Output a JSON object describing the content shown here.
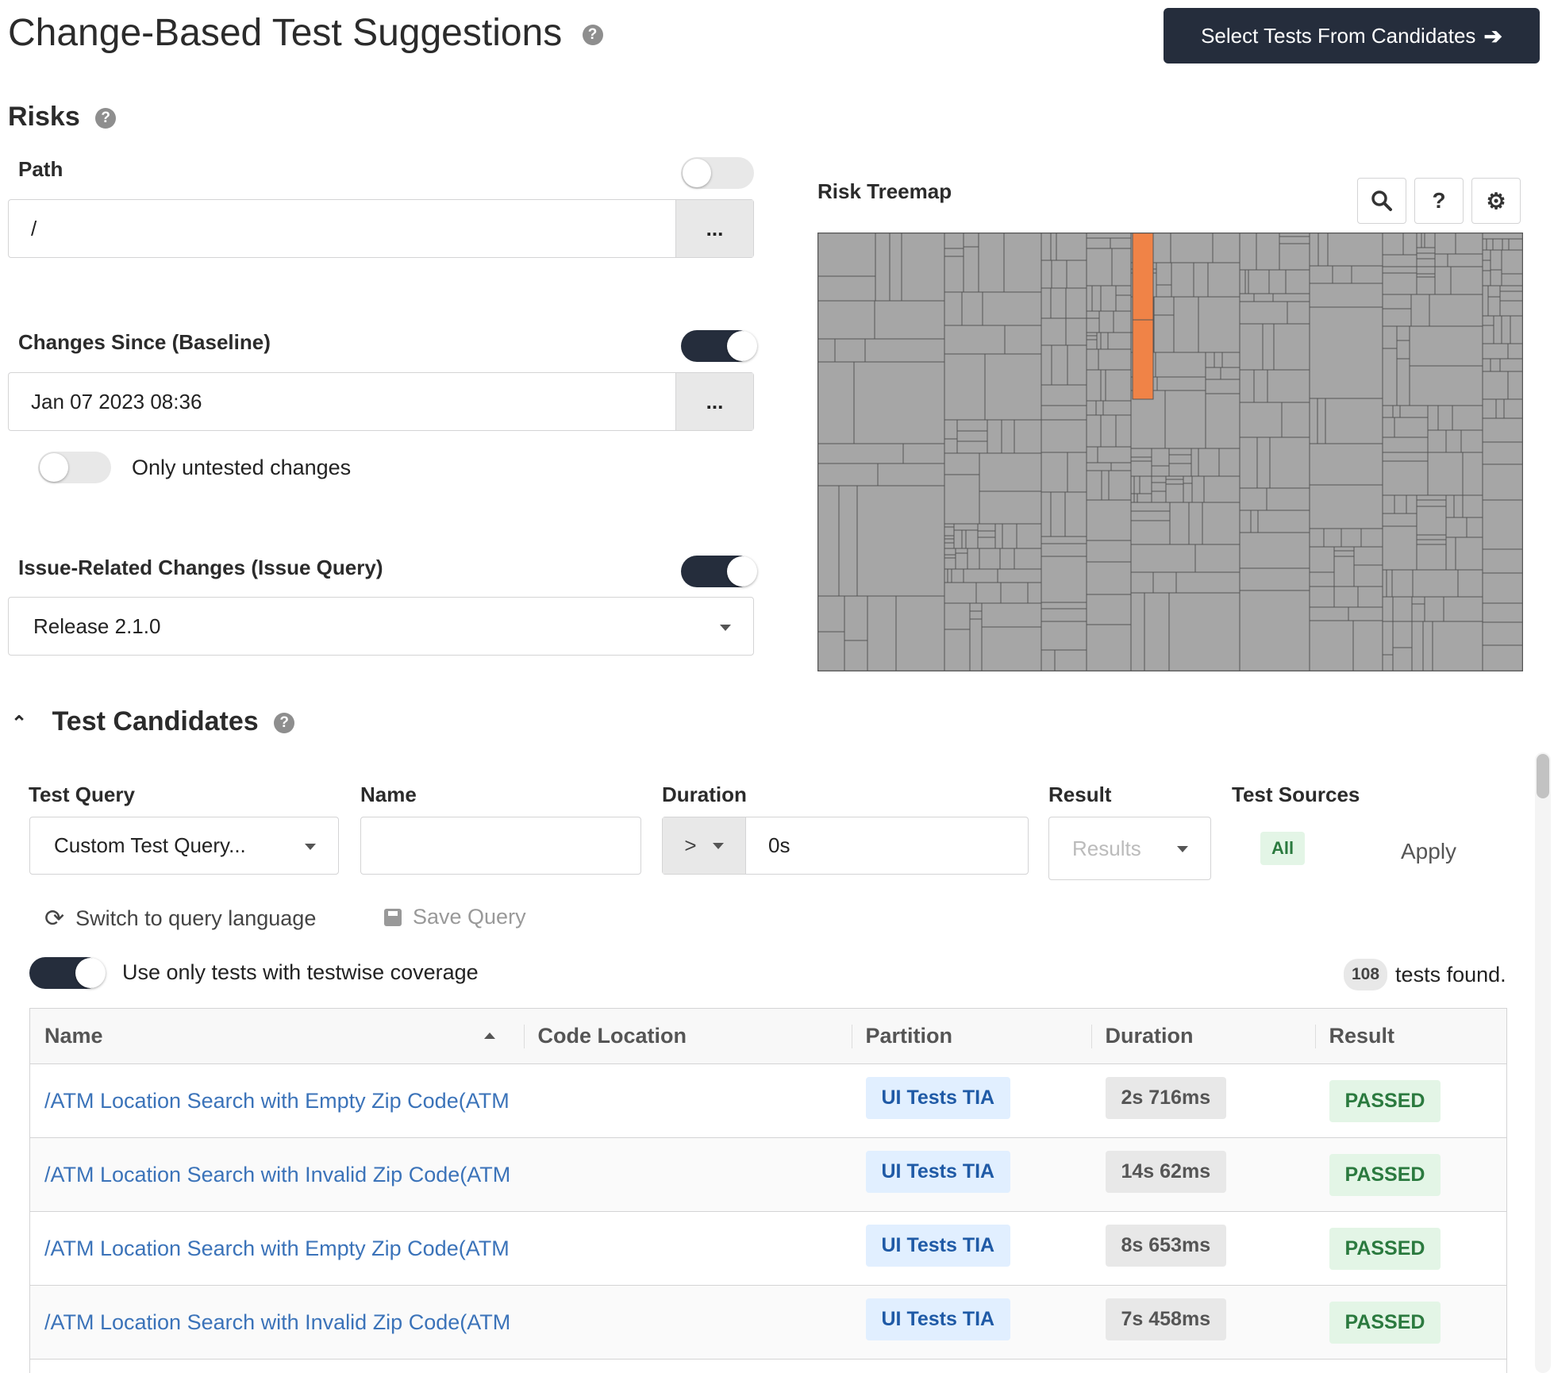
{
  "page": {
    "title": "Change-Based Test Suggestions",
    "select_button": "Select Tests From Candidates"
  },
  "risks": {
    "heading": "Risks",
    "path_label": "Path",
    "path_value": "/",
    "path_toggle_on": false,
    "baseline_label": "Changes Since (Baseline)",
    "baseline_value": "Jan 07 2023 08:36",
    "baseline_toggle_on": true,
    "untested_label": "Only untested changes",
    "untested_toggle_on": false,
    "issue_label": "Issue-Related Changes (Issue Query)",
    "issue_value": "Release 2.1.0",
    "issue_toggle_on": true,
    "dots": "..."
  },
  "treemap": {
    "title": "Risk Treemap",
    "base_color": "#a6a6a6",
    "highlight_color": "#f08347",
    "buttons": [
      "search-icon",
      "question-icon",
      "gear-icon"
    ]
  },
  "candidates": {
    "heading": "Test Candidates",
    "test_query_label": "Test Query",
    "test_query_value": "Custom Test Query...",
    "name_label": "Name",
    "name_value": "",
    "duration_label": "Duration",
    "duration_operator": ">",
    "duration_value": "0s",
    "result_label": "Result",
    "result_placeholder": "Results",
    "sources_label": "Test Sources",
    "sources_value": "All",
    "apply": "Apply",
    "switch_query": "Switch to query language",
    "save_query": "Save Query",
    "coverage_label": "Use only tests with testwise coverage",
    "coverage_toggle_on": true,
    "count": "108",
    "count_suffix": "tests found."
  },
  "table": {
    "columns": [
      "Name",
      "Code Location",
      "Partition",
      "Duration",
      "Result"
    ],
    "rows": [
      {
        "name": "/ATM Location Search with Empty Zip Code(ATM",
        "location": "",
        "partition": "UI Tests TIA",
        "duration": "2s 716ms",
        "result": "PASSED"
      },
      {
        "name": "/ATM Location Search with Invalid Zip Code(ATM",
        "location": "",
        "partition": "UI Tests TIA",
        "duration": "14s 62ms",
        "result": "PASSED"
      },
      {
        "name": "/ATM Location Search with Empty Zip Code(ATM",
        "location": "",
        "partition": "UI Tests TIA",
        "duration": "8s 653ms",
        "result": "PASSED"
      },
      {
        "name": "/ATM Location Search with Invalid Zip Code(ATM",
        "location": "",
        "partition": "UI Tests TIA",
        "duration": "7s 458ms",
        "result": "PASSED"
      }
    ]
  }
}
